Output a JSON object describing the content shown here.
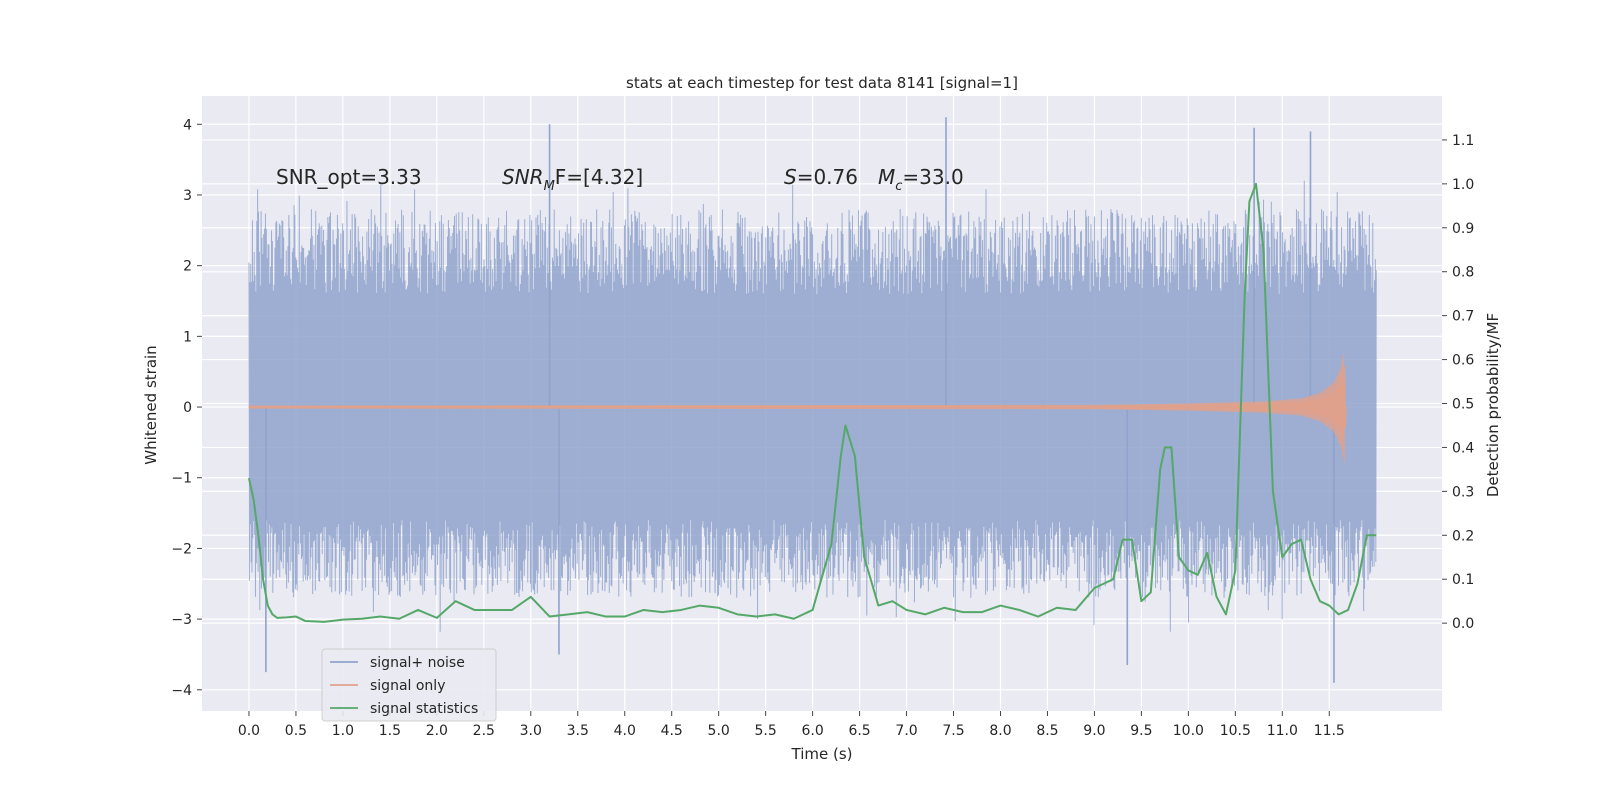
{
  "chart_data": {
    "type": "line",
    "title": "stats at each timestep for test data 8141 [signal=1]",
    "xlabel": "Time (s)",
    "ylabel": "Whitened strain",
    "ylabel_right": "Detection probability/MF",
    "xlim": [
      -0.5,
      12.7
    ],
    "ylim": [
      -4.3,
      4.4
    ],
    "ylim_right": [
      -0.2,
      1.2
    ],
    "x_ticks": [
      "0.0",
      "0.5",
      "1.0",
      "1.5",
      "2.0",
      "2.5",
      "3.0",
      "3.5",
      "4.0",
      "4.5",
      "5.0",
      "5.5",
      "6.0",
      "6.5",
      "7.0",
      "7.5",
      "8.0",
      "8.5",
      "9.0",
      "9.5",
      "10.0",
      "10.5",
      "11.0",
      "11.5"
    ],
    "y_ticks": [
      "4",
      "3",
      "2",
      "1",
      "0",
      "−1",
      "−2",
      "−3",
      "−4"
    ],
    "y_ticks_right": [
      "1.1",
      "1.0",
      "0.9",
      "0.8",
      "0.7",
      "0.6",
      "0.5",
      "0.4",
      "0.3",
      "0.2",
      "0.1",
      "0.0"
    ],
    "grid": true,
    "legend_position": "lower-left",
    "annotations": {
      "snr_opt": "SNR_opt=3.33",
      "snr_mf_main": "SNR",
      "snr_mf_sub": "M",
      "snr_mf_rest": "F=[4.32]",
      "s_main": "S",
      "s_rest": "=0.76",
      "mc_main": "M",
      "mc_sub": "c",
      "mc_rest": "=33.0"
    },
    "series": [
      {
        "name": "signal+ noise",
        "color": "#8fa3cc",
        "envelope": {
          "x_range": [
            0.0,
            12.0
          ],
          "upper_typical": [
            1.6,
            2.8
          ],
          "lower_typical": [
            -1.6,
            -2.7
          ],
          "peaks": [
            {
              "x": 0.18,
              "y": -3.75
            },
            {
              "x": 3.2,
              "y": 4.0
            },
            {
              "x": 3.3,
              "y": -3.5
            },
            {
              "x": 7.42,
              "y": 4.1
            },
            {
              "x": 9.35,
              "y": -3.65
            },
            {
              "x": 10.7,
              "y": 3.95
            },
            {
              "x": 11.3,
              "y": 3.9
            },
            {
              "x": 11.55,
              "y": -3.9
            }
          ]
        }
      },
      {
        "name": "signal only",
        "color": "#e0a18c",
        "x": [
          0.0,
          9.0,
          10.0,
          10.8,
          11.2,
          11.4,
          11.55,
          11.62,
          11.66,
          11.68
        ],
        "amplitude": [
          0.02,
          0.03,
          0.05,
          0.08,
          0.12,
          0.2,
          0.35,
          0.55,
          0.8,
          0.0
        ]
      },
      {
        "name": "signal statistics",
        "color": "#55a868",
        "x": [
          0.0,
          0.05,
          0.1,
          0.15,
          0.2,
          0.25,
          0.3,
          0.4,
          0.5,
          0.6,
          0.8,
          1.0,
          1.2,
          1.4,
          1.6,
          1.8,
          2.0,
          2.2,
          2.4,
          2.6,
          2.8,
          3.0,
          3.2,
          3.4,
          3.6,
          3.8,
          4.0,
          4.2,
          4.4,
          4.6,
          4.8,
          5.0,
          5.2,
          5.4,
          5.6,
          5.8,
          6.0,
          6.2,
          6.3,
          6.35,
          6.45,
          6.55,
          6.7,
          6.85,
          7.0,
          7.2,
          7.4,
          7.6,
          7.8,
          8.0,
          8.2,
          8.4,
          8.6,
          8.8,
          9.0,
          9.1,
          9.2,
          9.3,
          9.4,
          9.5,
          9.6,
          9.7,
          9.75,
          9.82,
          9.9,
          10.0,
          10.1,
          10.2,
          10.3,
          10.4,
          10.5,
          10.6,
          10.65,
          10.72,
          10.8,
          10.9,
          11.0,
          11.1,
          11.2,
          11.3,
          11.4,
          11.5,
          11.6,
          11.7,
          11.8,
          11.9,
          12.0
        ],
        "values": [
          0.33,
          0.28,
          0.2,
          0.1,
          0.04,
          0.02,
          0.012,
          0.013,
          0.015,
          0.005,
          0.003,
          0.008,
          0.01,
          0.015,
          0.01,
          0.03,
          0.012,
          0.05,
          0.03,
          0.03,
          0.03,
          0.06,
          0.015,
          0.02,
          0.025,
          0.015,
          0.015,
          0.03,
          0.025,
          0.03,
          0.04,
          0.035,
          0.02,
          0.015,
          0.02,
          0.01,
          0.03,
          0.18,
          0.38,
          0.45,
          0.38,
          0.15,
          0.04,
          0.05,
          0.03,
          0.02,
          0.035,
          0.025,
          0.025,
          0.04,
          0.03,
          0.015,
          0.035,
          0.03,
          0.08,
          0.09,
          0.1,
          0.19,
          0.19,
          0.05,
          0.07,
          0.35,
          0.4,
          0.4,
          0.15,
          0.12,
          0.11,
          0.16,
          0.06,
          0.02,
          0.12,
          0.75,
          0.96,
          1.0,
          0.85,
          0.3,
          0.15,
          0.18,
          0.19,
          0.1,
          0.05,
          0.04,
          0.02,
          0.03,
          0.09,
          0.2,
          0.2
        ]
      }
    ]
  }
}
